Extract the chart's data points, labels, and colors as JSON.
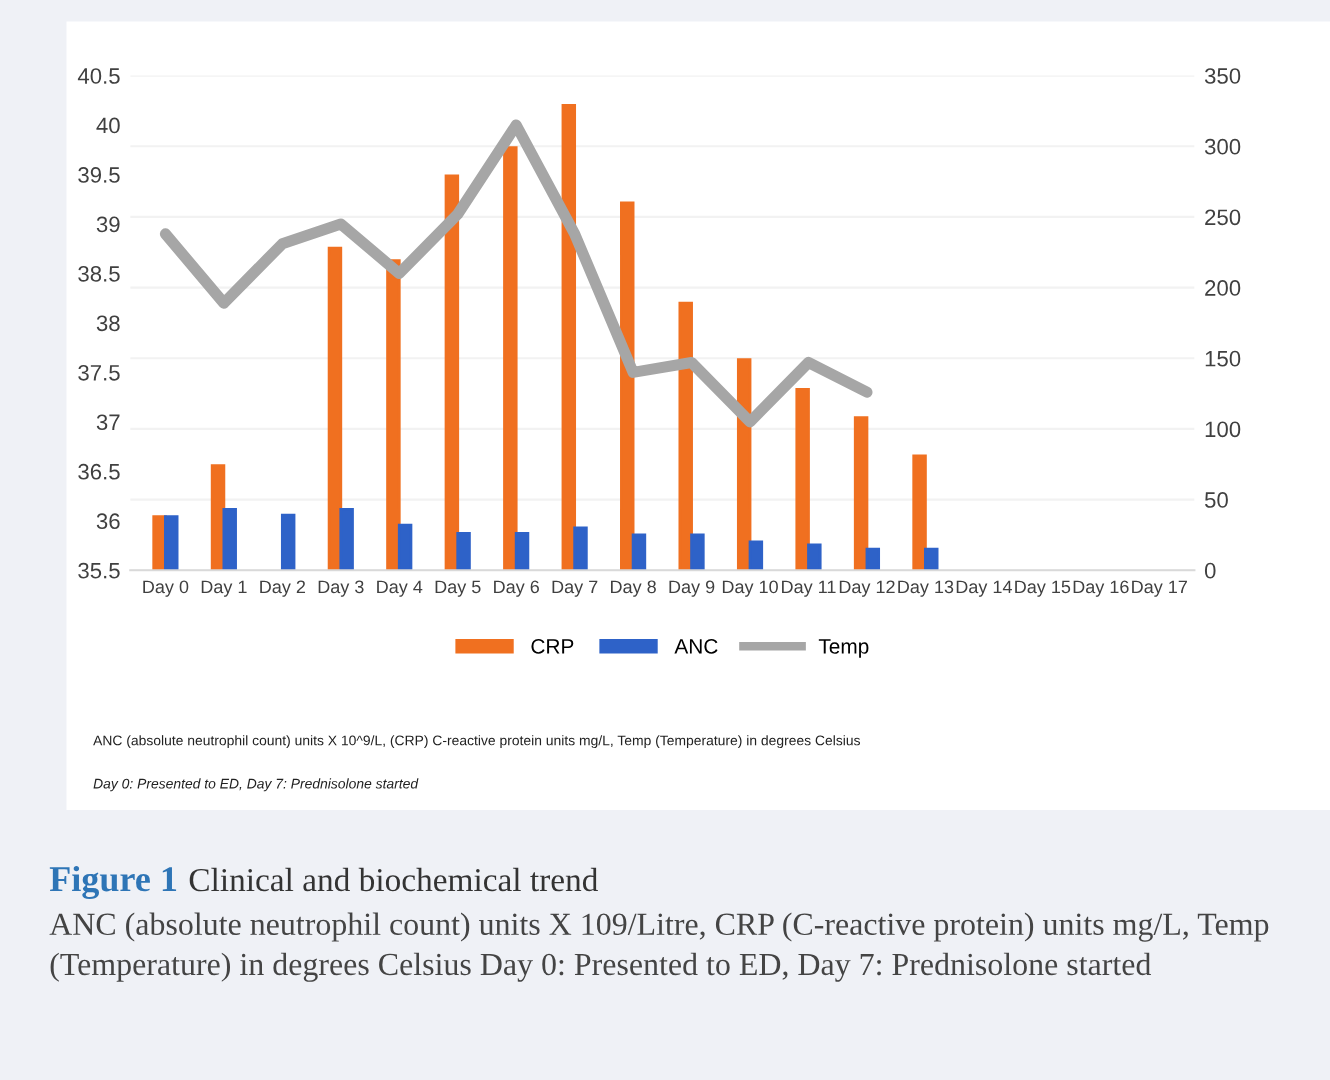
{
  "chart_data": {
    "type": "bar",
    "title": "Figure 1",
    "subtitle": "Clinical and biochemical trend",
    "categories": [
      "Day 0",
      "Day 1",
      "Day 2",
      "Day 3",
      "Day 4",
      "Day 5",
      "Day 6",
      "Day 7",
      "Day 8",
      "Day 9",
      "Day 10",
      "Day 11",
      "Day 12",
      "Day 13",
      "Day 14",
      "Day 15",
      "Day 16",
      "Day 17"
    ],
    "series": [
      {
        "name": "CRP",
        "color": "#f07020",
        "axis": "y2",
        "values": [
          38,
          74,
          null,
          228,
          219,
          279,
          299,
          329,
          260,
          189,
          149,
          128,
          108,
          81,
          null,
          null,
          null,
          null
        ]
      },
      {
        "name": "ANC",
        "color": "#2e62c8",
        "axis": "y2",
        "values": [
          38,
          43,
          39,
          43,
          32,
          26,
          26,
          30,
          25,
          25,
          20,
          18,
          15,
          15,
          null,
          null,
          null,
          null
        ]
      },
      {
        "name": "Temp",
        "type": "line",
        "color": "#a6a6a6",
        "values": [
          38.9,
          38.2,
          38.8,
          39.0,
          38.5,
          39.1,
          40.0,
          38.9,
          37.5,
          37.6,
          37.0,
          37.6,
          37.3,
          null,
          null,
          null,
          null,
          null
        ]
      }
    ],
    "ylim": [
      35.5,
      40.5
    ],
    "yticks": [
      35.5,
      36,
      36.5,
      37,
      37.5,
      38,
      38.5,
      39,
      39.5,
      40,
      40.5
    ],
    "y2lim": [
      0,
      350
    ],
    "y2ticks": [
      0,
      50,
      100,
      150,
      200,
      250,
      300,
      350
    ],
    "grid": "y",
    "legend": "bottom",
    "marker": "none",
    "line_style": "solid",
    "annotations": [
      "ANC (absolute neutrophil count) units X 10^9/L, (CRP) C-reactive protein units mg/L, Temp (Temperature) in degrees Celsius",
      "Day 0: Presented to ED, Day 7: Prednisolone started",
      "ANC (absolute neutrophil count) units X 109/Litre, CRP (C-reactive protein) units mg/L, Temp (Temperature) in degrees Celsius Day 0: Presented to ED, Day 7: Prednisolone started"
    ]
  }
}
